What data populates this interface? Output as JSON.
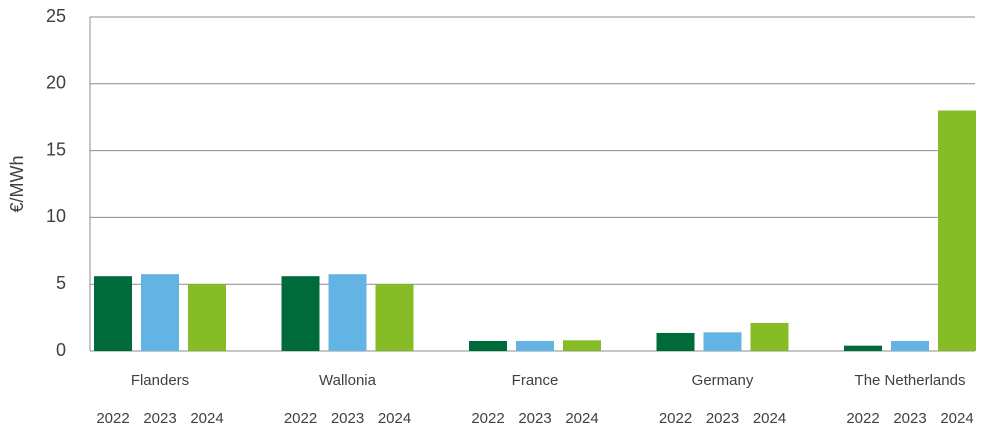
{
  "chart_data": {
    "type": "bar",
    "y_label": "€/MWh",
    "categories": [
      "Flanders",
      "Wallonia",
      "France",
      "Germany",
      "The Netherlands"
    ],
    "series": [
      {
        "name": "2022",
        "color": "#006b3a",
        "values": [
          5.6,
          5.6,
          0.75,
          1.35,
          0.4
        ]
      },
      {
        "name": "2023",
        "color": "#63b4e4",
        "values": [
          5.75,
          5.75,
          0.75,
          1.4,
          0.75
        ]
      },
      {
        "name": "2024",
        "color": "#86bc25",
        "values": [
          5.0,
          5.0,
          0.8,
          2.1,
          18.0
        ]
      }
    ],
    "ylim": [
      0,
      25
    ],
    "yticks": [
      0,
      5,
      10,
      15,
      20,
      25
    ],
    "grid": true
  }
}
